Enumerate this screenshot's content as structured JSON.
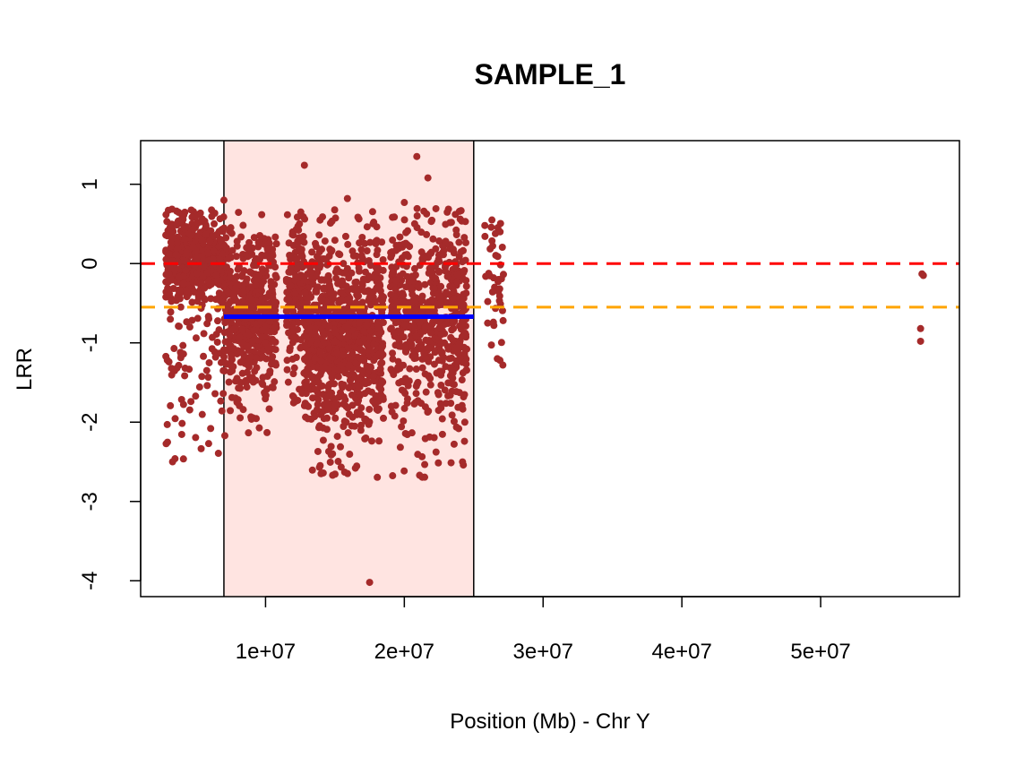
{
  "chart_data": {
    "type": "scatter",
    "title": "SAMPLE_1",
    "xlabel": "Position (Mb) - Chr Y",
    "ylabel": "LRR",
    "xlim": [
      1000000,
      60000000
    ],
    "ylim": [
      -4.2,
      1.55
    ],
    "x_ticks": [
      10000000,
      20000000,
      30000000,
      40000000,
      50000000
    ],
    "x_tick_labels": [
      "1e+07",
      "2e+07",
      "3e+07",
      "4e+07",
      "5e+07"
    ],
    "y_ticks": [
      1,
      0,
      -1,
      -2,
      -3,
      -4
    ],
    "y_tick_labels": [
      "1",
      "0",
      "-1",
      "-2",
      "-3",
      "-4"
    ],
    "grid": false,
    "legend": "none",
    "highlight_region": {
      "x_start": 7000000,
      "x_end": 25000000,
      "color": "#ffe4e1"
    },
    "segment": {
      "x_start": 7000000,
      "x_end": 25000000,
      "y": -0.67,
      "color": "#0000ff"
    },
    "reference_lines": [
      {
        "y": 0,
        "color": "#ff0000",
        "style": "dashed"
      },
      {
        "y": -0.55,
        "color": "#ffa500",
        "style": "dashed"
      }
    ],
    "point_color": "#a52a2a",
    "clusters": [
      {
        "x_start": 2800000,
        "x_end": 7000000,
        "n": 650,
        "center": 0.12,
        "spread": 0.25,
        "tail_min": -2.5,
        "tail_frac": 0.22
      },
      {
        "x_start": 7000000,
        "x_end": 10800000,
        "n": 520,
        "center": -0.5,
        "spread": 0.45,
        "tail_min": -2.2,
        "tail_frac": 0.3
      },
      {
        "x_start": 11500000,
        "x_end": 12800000,
        "n": 160,
        "center": -0.2,
        "spread": 0.4,
        "tail_min": -1.8,
        "tail_frac": 0.25
      },
      {
        "x_start": 12800000,
        "x_end": 18500000,
        "n": 900,
        "center": -0.7,
        "spread": 0.55,
        "tail_min": -2.7,
        "tail_frac": 0.35
      },
      {
        "x_start": 19000000,
        "x_end": 24500000,
        "n": 650,
        "center": -0.45,
        "spread": 0.5,
        "tail_min": -2.7,
        "tail_frac": 0.35
      },
      {
        "x_start": 25800000,
        "x_end": 27200000,
        "n": 40,
        "center": -0.1,
        "spread": 0.35,
        "tail_min": -1.3,
        "tail_frac": 0.2
      }
    ],
    "points": [
      {
        "x": 12800000,
        "y": 1.24
      },
      {
        "x": 20900000,
        "y": 1.35
      },
      {
        "x": 21700000,
        "y": 1.08
      },
      {
        "x": 7000000,
        "y": 0.8
      },
      {
        "x": 15900000,
        "y": 0.82
      },
      {
        "x": 20000000,
        "y": 0.77
      },
      {
        "x": 17500000,
        "y": -4.02
      },
      {
        "x": 14000000,
        "y": -2.65
      },
      {
        "x": 15700000,
        "y": -2.63
      },
      {
        "x": 21100000,
        "y": -2.67
      },
      {
        "x": 3300000,
        "y": -2.5
      },
      {
        "x": 5900000,
        "y": -2.27
      },
      {
        "x": 24400000,
        "y": 0.53
      },
      {
        "x": 25800000,
        "y": 0.48
      },
      {
        "x": 26900000,
        "y": 0.4
      },
      {
        "x": 27100000,
        "y": -1.28
      },
      {
        "x": 26700000,
        "y": -1.2
      },
      {
        "x": 57300000,
        "y": -0.13
      },
      {
        "x": 57400000,
        "y": -0.15
      },
      {
        "x": 57200000,
        "y": -0.82
      },
      {
        "x": 57200000,
        "y": -0.98
      }
    ]
  }
}
